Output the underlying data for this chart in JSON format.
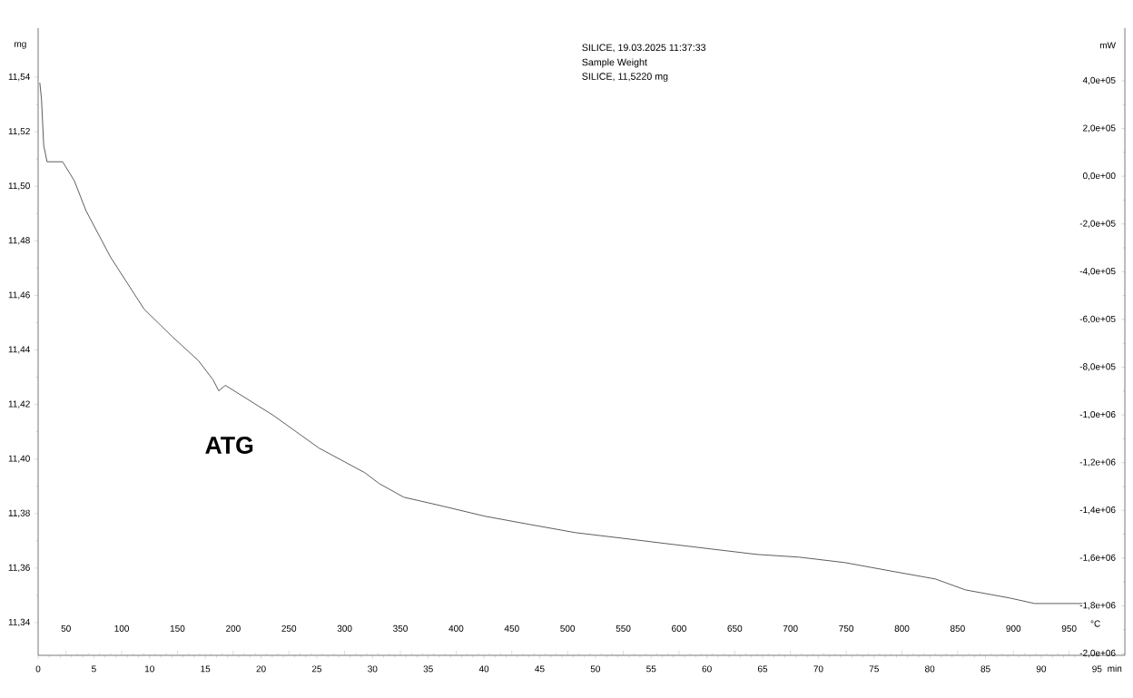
{
  "chart_data": {
    "type": "line",
    "annotations": [
      "SILICE, 19.03.2025 11:37:33",
      "Sample Weight",
      "SILICE, 11,5220 mg",
      "ATG",
      "-2,0e+06",
      "-1,8e+06",
      "-1,6e+06",
      "-1,4e+06",
      "-1,2e+06",
      "-1,0e+06",
      "-8,0e+05",
      "-6,0e+05",
      "-4,0e+05",
      "-2,0e+05",
      "0,0e+00",
      "2,0e+05",
      "4,0e+05"
    ],
    "xlabel": "min",
    "ylabel": "mg",
    "y2label": "mW",
    "x2label": "°C",
    "x": [
      0.15,
      0.3,
      0.5,
      0.8,
      2.2,
      3.25,
      4.3,
      6.5,
      9.5,
      12.0,
      14.4,
      15.7,
      16.2,
      16.8,
      21.1,
      25.2,
      29.3,
      30.6,
      32.8,
      36.0,
      40.1,
      44.1,
      48.2,
      52.3,
      56.3,
      60.4,
      64.5,
      68.3,
      72.4,
      76.4,
      80.5,
      83.2,
      87.2,
      89.4,
      93.7
    ],
    "series": [
      {
        "color": "#333333",
        "values": [
          11.538,
          11.532,
          11.515,
          11.509,
          11.509,
          11.502,
          11.491,
          11.474,
          11.455,
          11.445,
          11.436,
          11.429,
          11.425,
          11.427,
          11.416,
          11.404,
          11.395,
          11.391,
          11.386,
          11.383,
          11.379,
          11.376,
          11.373,
          11.371,
          11.369,
          11.367,
          11.365,
          11.364,
          11.362,
          11.359,
          11.356,
          11.352,
          11.349,
          11.347,
          11.347
        ]
      }
    ],
    "xlim": [
      0,
      97.5
    ],
    "xticks": [
      0,
      5,
      10,
      15,
      20,
      25,
      30,
      35,
      40,
      45,
      50,
      55,
      60,
      65,
      70,
      75,
      80,
      85,
      90,
      95
    ],
    "x2lim": [
      25,
      1000
    ],
    "x2ticks": [
      50,
      100,
      150,
      200,
      250,
      300,
      350,
      400,
      450,
      500,
      550,
      600,
      650,
      700,
      750,
      800,
      850,
      900,
      950
    ],
    "ylim": [
      11.328,
      11.558
    ],
    "yticks": [
      {
        "value": 11.34,
        "label": "11,34"
      },
      {
        "value": 11.36,
        "label": "11,36"
      },
      {
        "value": 11.38,
        "label": "11,38"
      },
      {
        "value": 11.4,
        "label": "11,40"
      },
      {
        "value": 11.42,
        "label": "11,42"
      },
      {
        "value": 11.44,
        "label": "11,44"
      },
      {
        "value": 11.46,
        "label": "11,46"
      },
      {
        "value": 11.48,
        "label": "11,48"
      },
      {
        "value": 11.5,
        "label": "11,50"
      },
      {
        "value": 11.52,
        "label": "11,52"
      },
      {
        "value": 11.54,
        "label": "11,54"
      }
    ],
    "tick_labels": "xy"
  }
}
